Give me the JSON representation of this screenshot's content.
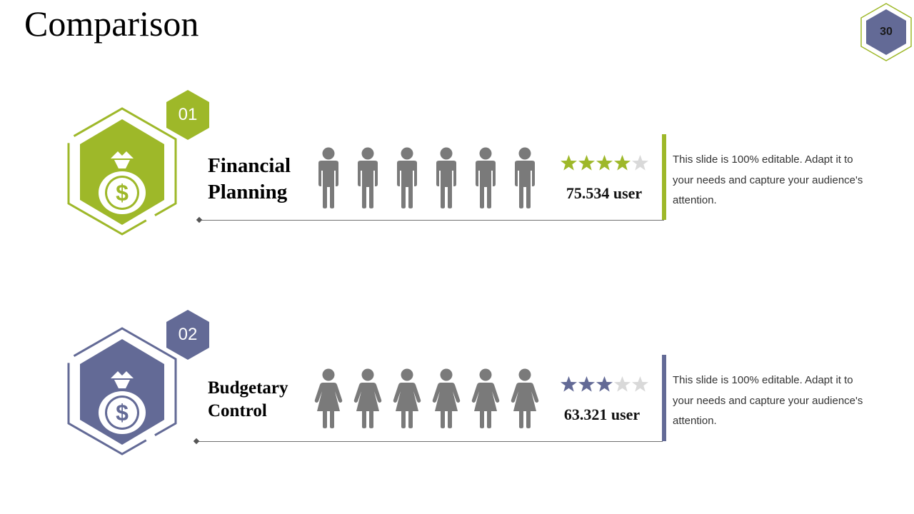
{
  "page": {
    "title": "Comparison",
    "page_number": "30"
  },
  "colors": {
    "green": "#9eb829",
    "purple": "#636a96",
    "person_gray": "#7a7a7a",
    "star_empty": "#d9d9d9"
  },
  "items": [
    {
      "number": "01",
      "icon": "money-bag-icon",
      "title_line1": "Financial",
      "title_line2": "Planning",
      "people_icon": "male-person-icon",
      "people_count": 6,
      "rating": 4,
      "rating_max": 5,
      "user_count": "75.534 user",
      "description": "This slide is 100% editable. Adapt it to your needs and capture your audience's attention."
    },
    {
      "number": "02",
      "icon": "money-bag-icon",
      "title_line1": "Budgetary",
      "title_line2": "Control",
      "people_icon": "female-person-icon",
      "people_count": 6,
      "rating": 3,
      "rating_max": 5,
      "user_count": "63.321 user",
      "description": "This slide is 100% editable. Adapt it to your needs and capture your audience's attention."
    }
  ]
}
